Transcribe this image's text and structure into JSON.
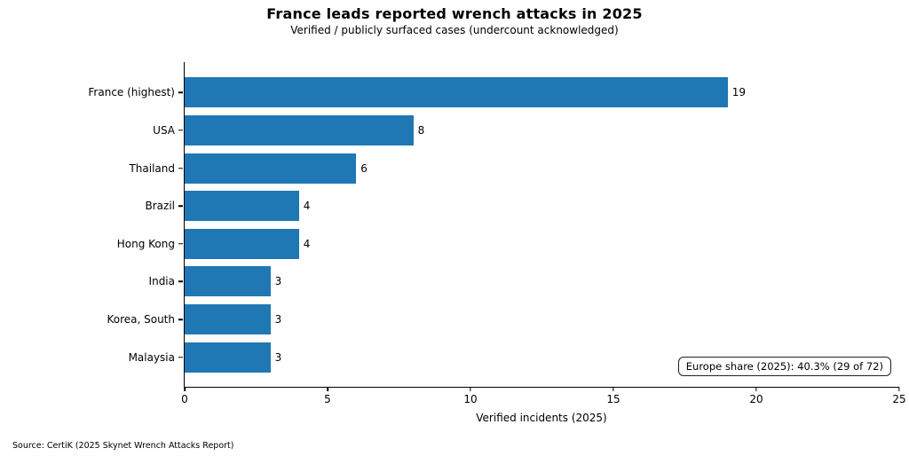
{
  "chart_data": {
    "type": "bar",
    "orientation": "horizontal",
    "title": "France leads reported wrench attacks in 2025",
    "subtitle": "Verified / publicly surfaced cases (undercount acknowledged)",
    "categories": [
      "France (highest)",
      "USA",
      "Thailand",
      "Brazil",
      "Hong Kong",
      "India",
      "Korea, South",
      "Malaysia"
    ],
    "values": [
      19,
      8,
      6,
      4,
      4,
      3,
      3,
      3
    ],
    "xlabel": "Verified incidents (2025)",
    "xticks": [
      0,
      5,
      10,
      15,
      20,
      25
    ],
    "xlim": [
      0,
      25
    ],
    "bar_color": "#1f77b4",
    "grid": false,
    "legend": "none",
    "annotation": "Europe share (2025): 40.3% (29 of 72)",
    "source": "Source: CertiK (2025 Skynet Wrench Attacks Report)"
  }
}
